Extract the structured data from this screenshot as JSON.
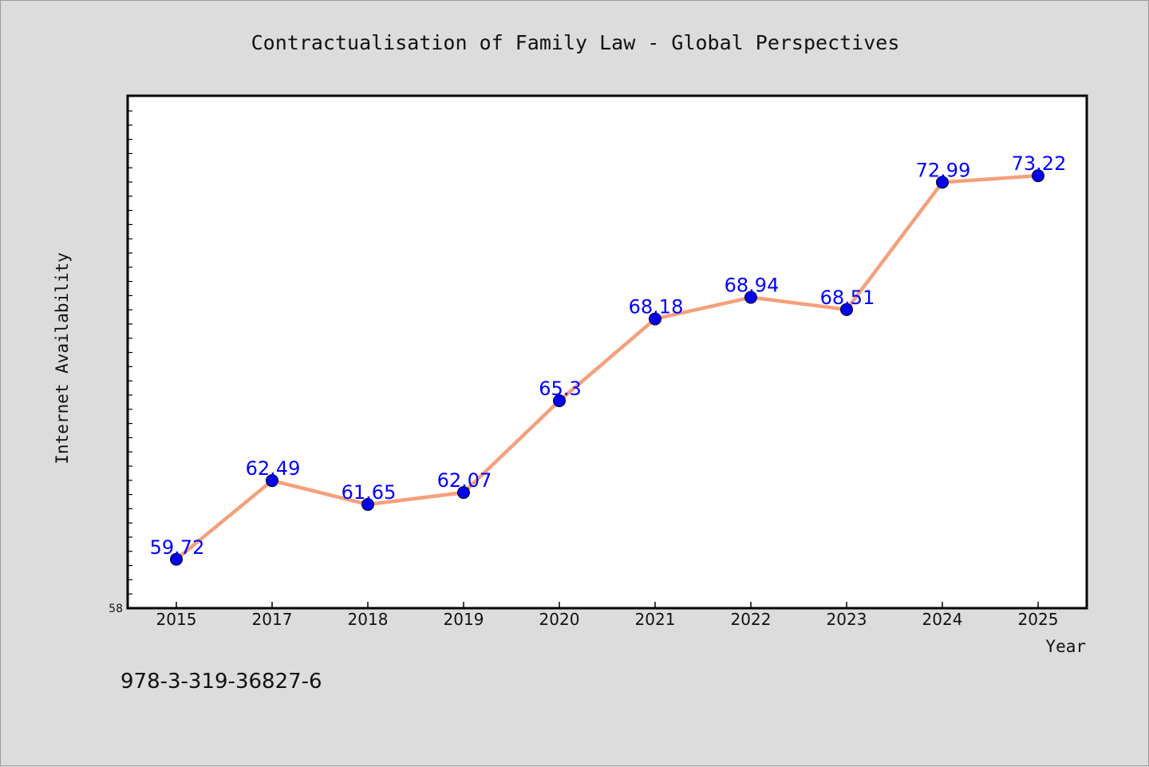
{
  "chart_data": {
    "type": "line",
    "title": "Contractualisation of Family Law - Global Perspectives",
    "xlabel": "Year",
    "ylabel": "Internet Availability",
    "categories": [
      "2015",
      "2017",
      "2018",
      "2019",
      "2020",
      "2021",
      "2022",
      "2023",
      "2024",
      "2025"
    ],
    "series": [
      {
        "values": [
          59.72,
          62.49,
          61.65,
          62.07,
          65.3,
          68.18,
          68.94,
          68.51,
          72.99,
          73.22
        ],
        "labels": [
          "59.72",
          "62.49",
          "61.65",
          "62.07",
          "65.3",
          "68.18",
          "68.94",
          "68.51",
          "72.99",
          "73.22"
        ]
      }
    ],
    "ylim": [
      58,
      76
    ],
    "y_tick_label": "58",
    "grid": false,
    "line_color": "#f4a07c",
    "marker_color": "#0000ee",
    "label_color": "#0000ff",
    "plot_background": "#ffffff",
    "figure_background": "#dcdcdc"
  },
  "footer": {
    "isbn": "978-3-319-36827-6"
  }
}
